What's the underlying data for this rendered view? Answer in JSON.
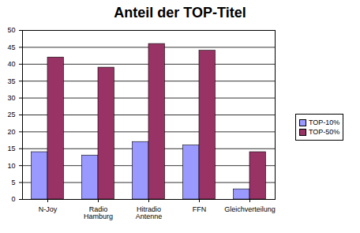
{
  "chart_data": {
    "type": "bar",
    "title": "Anteil der TOP-Titel",
    "categories": [
      "N-Joy",
      "Radio Hamburg",
      "Hitradio Antenne",
      "FFN",
      "Gleichverteilung"
    ],
    "series": [
      {
        "name": "TOP-10%",
        "color": "#9999ff",
        "values": [
          14,
          13,
          17,
          16,
          3
        ]
      },
      {
        "name": "TOP-50%",
        "color": "#993366",
        "values": [
          42,
          39,
          46,
          44,
          14
        ]
      }
    ],
    "ylim": [
      0,
      50
    ],
    "yticks": [
      0,
      5,
      10,
      15,
      20,
      25,
      30,
      35,
      40,
      45,
      50
    ],
    "grid": true,
    "legend": "right"
  }
}
